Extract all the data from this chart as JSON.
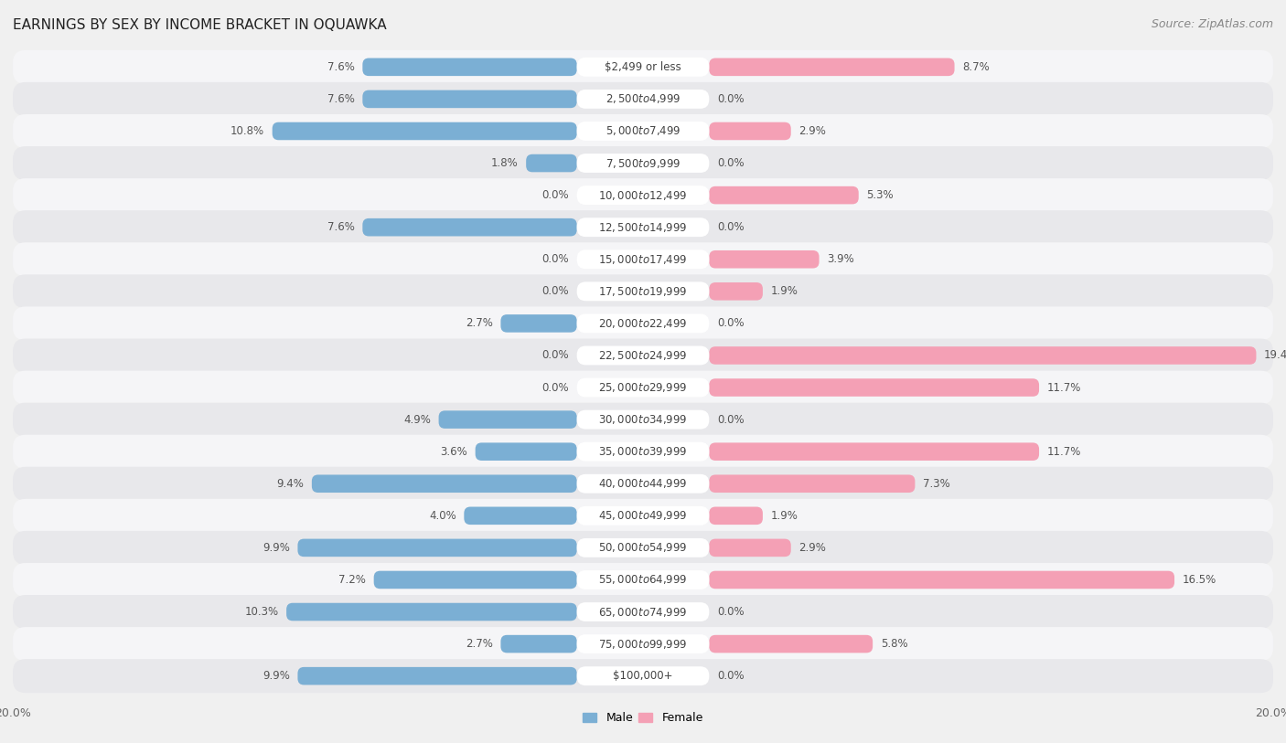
{
  "title": "EARNINGS BY SEX BY INCOME BRACKET IN OQUAWKA",
  "source": "Source: ZipAtlas.com",
  "categories": [
    "$2,499 or less",
    "$2,500 to $4,999",
    "$5,000 to $7,499",
    "$7,500 to $9,999",
    "$10,000 to $12,499",
    "$12,500 to $14,999",
    "$15,000 to $17,499",
    "$17,500 to $19,999",
    "$20,000 to $22,499",
    "$22,500 to $24,999",
    "$25,000 to $29,999",
    "$30,000 to $34,999",
    "$35,000 to $39,999",
    "$40,000 to $44,999",
    "$45,000 to $49,999",
    "$50,000 to $54,999",
    "$55,000 to $64,999",
    "$65,000 to $74,999",
    "$75,000 to $99,999",
    "$100,000+"
  ],
  "male": [
    7.6,
    7.6,
    10.8,
    1.8,
    0.0,
    7.6,
    0.0,
    0.0,
    2.7,
    0.0,
    0.0,
    4.9,
    3.6,
    9.4,
    4.0,
    9.9,
    7.2,
    10.3,
    2.7,
    9.9
  ],
  "female": [
    8.7,
    0.0,
    2.9,
    0.0,
    5.3,
    0.0,
    3.9,
    1.9,
    0.0,
    19.4,
    11.7,
    0.0,
    11.7,
    7.3,
    1.9,
    2.9,
    16.5,
    0.0,
    5.8,
    0.0
  ],
  "male_color": "#7bafd4",
  "female_color": "#f4a0b5",
  "axis_max": 20.0,
  "bg_color": "#f0f0f0",
  "row_color_odd": "#e8e8eb",
  "row_color_even": "#f5f5f7",
  "title_fontsize": 11,
  "label_fontsize": 8.5,
  "tick_fontsize": 9,
  "source_fontsize": 9
}
